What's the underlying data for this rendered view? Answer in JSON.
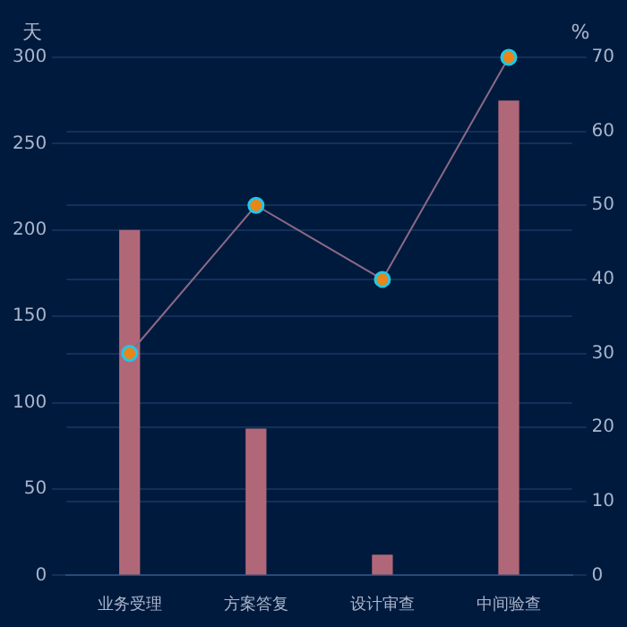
{
  "chart_data": {
    "type": "bar",
    "ylabel": "天",
    "y2label": "%",
    "categories": [
      "业务受理",
      "方案答复",
      "设计审查",
      "中间验查"
    ],
    "series": [
      {
        "color": "#b06878",
        "values": [
          200,
          85,
          12,
          275
        ]
      },
      {
        "type": "line",
        "axis": "y2",
        "color": "#e8861a",
        "marker": "circle",
        "values": [
          30,
          50,
          40,
          70
        ]
      }
    ],
    "ylim": [
      0,
      300
    ],
    "yticks": [
      0,
      50,
      100,
      150,
      200,
      250,
      300
    ],
    "y2lim": [
      0,
      70
    ],
    "y2ticks": [
      0,
      10,
      20,
      30,
      40,
      50,
      60,
      70
    ],
    "grid": "y",
    "legend": false
  }
}
